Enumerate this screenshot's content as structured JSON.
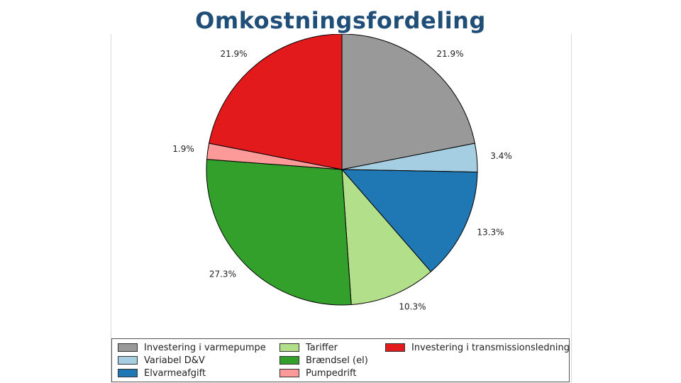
{
  "page": {
    "title": "Omkostningsfordeling"
  },
  "chart_data": {
    "type": "pie",
    "title": "",
    "slices": [
      {
        "label": "Investering i varmepumpe",
        "value": 21.9,
        "pct_label": "21.9%",
        "color": "#999999"
      },
      {
        "label": "Variabel D&V",
        "value": 3.4,
        "pct_label": "3.4%",
        "color": "#a6cee3"
      },
      {
        "label": "Elvarmeafgift",
        "value": 13.3,
        "pct_label": "13.3%",
        "color": "#1f78b4"
      },
      {
        "label": "Tariffer",
        "value": 10.3,
        "pct_label": "10.3%",
        "color": "#b2df8a"
      },
      {
        "label": "Brændsel (el)",
        "value": 27.3,
        "pct_label": "27.3%",
        "color": "#33a02c"
      },
      {
        "label": "Pumpedrift",
        "value": 1.9,
        "pct_label": "1.9%",
        "color": "#fb9a99"
      },
      {
        "label": "Investering i transmissionsledning",
        "value": 21.9,
        "pct_label": "21.9%",
        "color": "#e31a1c"
      }
    ],
    "start": "top",
    "direction": "clockwise",
    "legend_position": "bottom"
  }
}
